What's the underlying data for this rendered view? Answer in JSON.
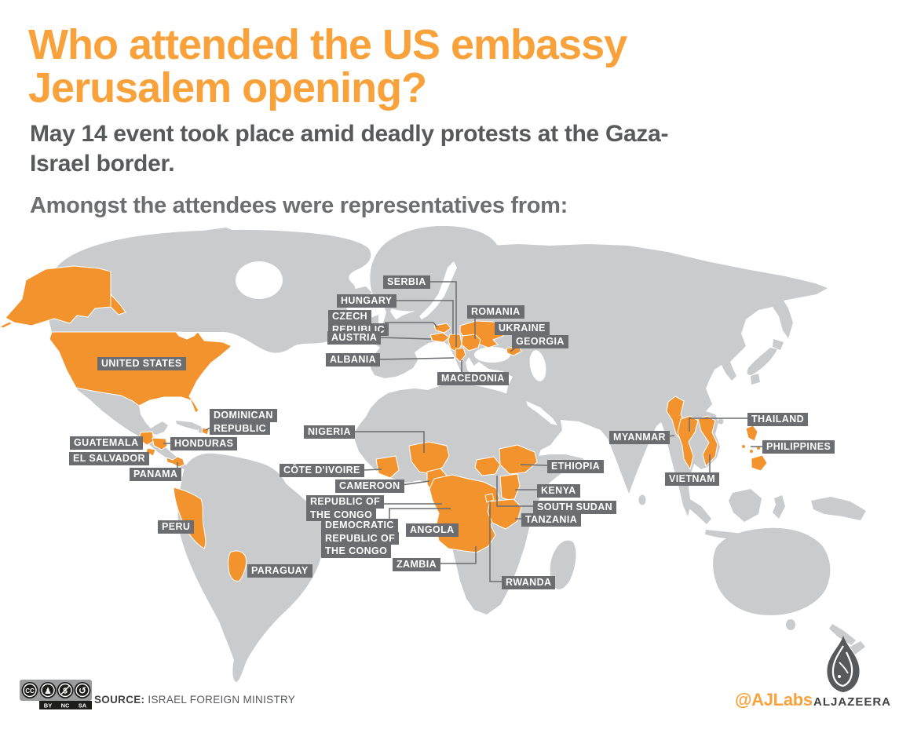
{
  "header": {
    "title": "Who attended the US embassy Jerusalem opening?",
    "subtitle": "May 14 event took place amid deadly protests at the Gaza-Israel border.",
    "intro": "Amongst the attendees were representatives from:"
  },
  "map": {
    "labels": [
      {
        "id": "serbia",
        "lines": [
          "SERBIA"
        ]
      },
      {
        "id": "hungary",
        "lines": [
          "HUNGARY"
        ]
      },
      {
        "id": "czech-republic",
        "lines": [
          "CZECH",
          "REPUBLIC"
        ]
      },
      {
        "id": "austria",
        "lines": [
          "AUSTRIA"
        ]
      },
      {
        "id": "albania",
        "lines": [
          "ALBANIA"
        ]
      },
      {
        "id": "macedonia",
        "lines": [
          "MACEDONIA"
        ]
      },
      {
        "id": "romania",
        "lines": [
          "ROMANIA"
        ]
      },
      {
        "id": "ukraine",
        "lines": [
          "UKRAINE"
        ]
      },
      {
        "id": "georgia",
        "lines": [
          "GEORGIA"
        ]
      },
      {
        "id": "united-states",
        "lines": [
          "UNITED STATES"
        ]
      },
      {
        "id": "dominican-republic",
        "lines": [
          "DOMINICAN",
          "REPUBLIC"
        ]
      },
      {
        "id": "guatemala",
        "lines": [
          "GUATEMALA"
        ]
      },
      {
        "id": "honduras",
        "lines": [
          "HONDURAS"
        ]
      },
      {
        "id": "el-salvador",
        "lines": [
          "EL SALVADOR"
        ]
      },
      {
        "id": "panama",
        "lines": [
          "PANAMA"
        ]
      },
      {
        "id": "peru",
        "lines": [
          "PERU"
        ]
      },
      {
        "id": "paraguay",
        "lines": [
          "PARAGUAY"
        ]
      },
      {
        "id": "nigeria",
        "lines": [
          "NIGERIA"
        ]
      },
      {
        "id": "cote-divoire",
        "lines": [
          "CÔTE D'IVOIRE"
        ]
      },
      {
        "id": "cameroon",
        "lines": [
          "CAMEROON"
        ]
      },
      {
        "id": "republic-of-the-congo",
        "lines": [
          "REPUBLIC OF",
          "THE CONGO"
        ]
      },
      {
        "id": "democratic-republic-of-the-congo",
        "lines": [
          "DEMOCRATIC",
          "REPUBLIC OF",
          "THE CONGO"
        ]
      },
      {
        "id": "angola",
        "lines": [
          "ANGOLA"
        ]
      },
      {
        "id": "zambia",
        "lines": [
          "ZAMBIA"
        ]
      },
      {
        "id": "rwanda",
        "lines": [
          "RWANDA"
        ]
      },
      {
        "id": "ethiopia",
        "lines": [
          "ETHIOPIA"
        ]
      },
      {
        "id": "kenya",
        "lines": [
          "KENYA"
        ]
      },
      {
        "id": "south-sudan",
        "lines": [
          "SOUTH SUDAN"
        ]
      },
      {
        "id": "tanzania",
        "lines": [
          "TANZANIA"
        ]
      },
      {
        "id": "myanmar",
        "lines": [
          "MYANMAR"
        ]
      },
      {
        "id": "thailand",
        "lines": [
          "THAILAND"
        ]
      },
      {
        "id": "vietnam",
        "lines": [
          "VIETNAM"
        ]
      },
      {
        "id": "philippines",
        "lines": [
          "PHILIPPINES"
        ]
      }
    ]
  },
  "footer": {
    "license": {
      "icons": [
        {
          "name": "cc-icon",
          "glyph": "CC"
        },
        {
          "name": "attribution-icon",
          "glyph": "♟"
        },
        {
          "name": "nc-icon",
          "glyph": "$"
        },
        {
          "name": "sa-icon",
          "glyph": "↺"
        }
      ],
      "parts": [
        "BY",
        "NC",
        "SA"
      ]
    },
    "source_label": "SOURCE:",
    "source_value": "ISRAEL FOREIGN MINISTRY",
    "credit": "@AJLabs",
    "brand": "ALJAZEERA"
  },
  "colors": {
    "accent_orange": "#F2932D",
    "title_orange": "#F9A23C",
    "map_gray": "#C9CBCD",
    "label_bg": "#6B6D70",
    "text_dark": "#58595B",
    "text_darker": "#414042"
  }
}
